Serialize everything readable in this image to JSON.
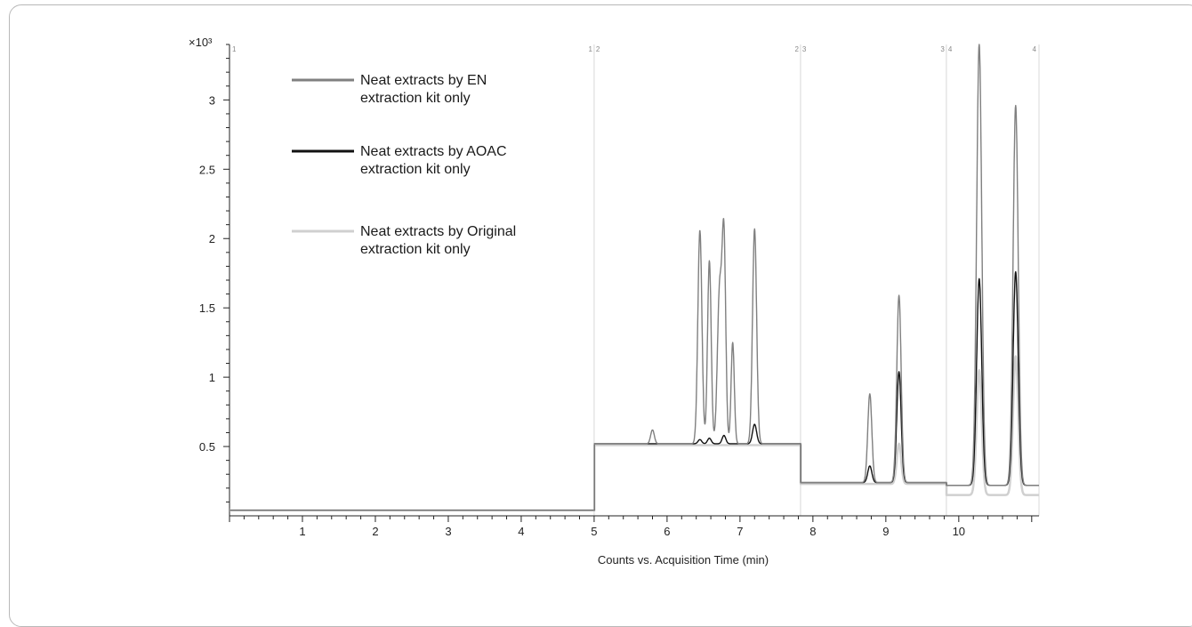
{
  "chart_data": {
    "type": "line",
    "title": "",
    "xlabel": "Counts vs. Acquisition Time (min)",
    "ylabel": "",
    "y_multiplier_label": "×10³",
    "xlim": [
      0,
      11.1
    ],
    "ylim": [
      0,
      3.4
    ],
    "x_ticks": [
      1,
      2,
      3,
      4,
      5,
      6,
      7,
      8,
      9,
      10
    ],
    "y_ticks": [
      0.5,
      1,
      1.5,
      2,
      2.5,
      3
    ],
    "grid": false,
    "legend_position": "top-left",
    "segment_boundaries": [
      {
        "x": 0.0,
        "labels": [
          "1"
        ]
      },
      {
        "x": 5.0,
        "labels": [
          "1",
          "2"
        ]
      },
      {
        "x": 7.83,
        "labels": [
          "2",
          "3"
        ]
      },
      {
        "x": 9.83,
        "labels": [
          "3",
          "4"
        ]
      },
      {
        "x": 11.1,
        "labels": [
          "4"
        ]
      }
    ],
    "series": [
      {
        "name": "Neat extracts by EN extraction kit only",
        "color": "#808080",
        "baseline": [
          [
            0,
            5.0,
            0.04
          ],
          [
            5.0,
            7.83,
            0.52
          ],
          [
            7.83,
            9.83,
            0.24
          ],
          [
            9.83,
            11.1,
            0.22
          ]
        ],
        "peaks": [
          {
            "x": 5.8,
            "h": 0.62,
            "w": 0.025
          },
          {
            "x": 6.45,
            "h": 2.06,
            "w": 0.028
          },
          {
            "x": 6.58,
            "h": 1.84,
            "w": 0.025
          },
          {
            "x": 6.72,
            "h": 1.62,
            "w": 0.03
          },
          {
            "x": 6.78,
            "h": 1.97,
            "w": 0.025
          },
          {
            "x": 6.9,
            "h": 1.25,
            "w": 0.022
          },
          {
            "x": 7.2,
            "h": 2.07,
            "w": 0.028
          },
          {
            "x": 8.78,
            "h": 0.88,
            "w": 0.028
          },
          {
            "x": 9.18,
            "h": 1.59,
            "w": 0.03
          },
          {
            "x": 10.28,
            "h": 3.4,
            "w": 0.035
          },
          {
            "x": 10.78,
            "h": 2.96,
            "w": 0.035
          }
        ]
      },
      {
        "name": "Neat extracts by AOAC extraction kit only",
        "color": "#111111",
        "baseline": [
          [
            0,
            5.0,
            0.04
          ],
          [
            5.0,
            7.83,
            0.52
          ],
          [
            7.83,
            9.83,
            0.24
          ],
          [
            9.83,
            11.1,
            0.22
          ]
        ],
        "peaks": [
          {
            "x": 6.45,
            "h": 0.55,
            "w": 0.025
          },
          {
            "x": 6.58,
            "h": 0.56,
            "w": 0.025
          },
          {
            "x": 6.78,
            "h": 0.58,
            "w": 0.025
          },
          {
            "x": 7.2,
            "h": 0.66,
            "w": 0.028
          },
          {
            "x": 8.78,
            "h": 0.36,
            "w": 0.028
          },
          {
            "x": 9.18,
            "h": 1.04,
            "w": 0.03
          },
          {
            "x": 10.28,
            "h": 1.71,
            "w": 0.035
          },
          {
            "x": 10.78,
            "h": 1.76,
            "w": 0.035
          }
        ]
      },
      {
        "name": "Neat extracts by Original extraction kit only",
        "color": "#d0d0d0",
        "baseline": [
          [
            0,
            5.0,
            0.04
          ],
          [
            5.0,
            7.83,
            0.51
          ],
          [
            7.83,
            9.83,
            0.23
          ],
          [
            9.83,
            11.1,
            0.15
          ]
        ],
        "peaks": [
          {
            "x": 9.18,
            "h": 0.52,
            "w": 0.03
          },
          {
            "x": 10.28,
            "h": 1.05,
            "w": 0.035
          },
          {
            "x": 10.78,
            "h": 1.15,
            "w": 0.035
          }
        ]
      }
    ]
  }
}
